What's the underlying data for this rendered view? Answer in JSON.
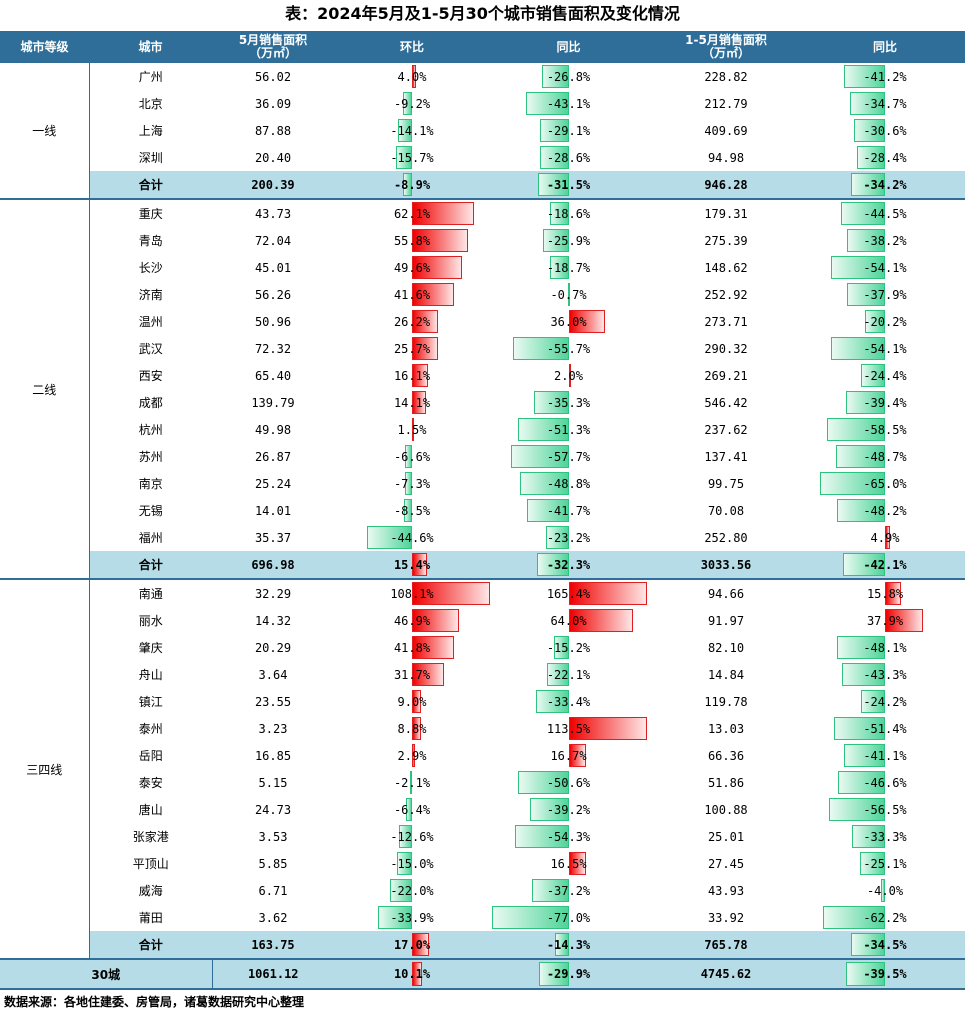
{
  "title": "表：2024年5月及1-5月30个城市销售面积及变化情况",
  "headers": [
    "城市等级",
    "城市",
    "5月销售面积\n（万㎡）",
    "环比",
    "同比",
    "1-5月销售面积\n（万㎡）",
    "同比"
  ],
  "groups": [
    {
      "tier": "一线",
      "rows": [
        [
          "广州",
          "56.02",
          "4.0%",
          "-26.8%",
          "228.82",
          "-41.2%"
        ],
        [
          "北京",
          "36.09",
          "-9.2%",
          "-43.1%",
          "212.79",
          "-34.7%"
        ],
        [
          "上海",
          "87.88",
          "-14.1%",
          "-29.1%",
          "409.69",
          "-30.6%"
        ],
        [
          "深圳",
          "20.40",
          "-15.7%",
          "-28.6%",
          "94.98",
          "-28.4%"
        ]
      ],
      "subtotal": [
        "合计",
        "200.39",
        "-8.9%",
        "-31.5%",
        "946.28",
        "-34.2%"
      ]
    },
    {
      "tier": "二线",
      "rows": [
        [
          "重庆",
          "43.73",
          "62.1%",
          "-18.6%",
          "179.31",
          "-44.5%"
        ],
        [
          "青岛",
          "72.04",
          "55.8%",
          "-25.9%",
          "275.39",
          "-38.2%"
        ],
        [
          "长沙",
          "45.01",
          "49.6%",
          "-18.7%",
          "148.62",
          "-54.1%"
        ],
        [
          "济南",
          "56.26",
          "41.6%",
          "-0.7%",
          "252.92",
          "-37.9%"
        ],
        [
          "温州",
          "50.96",
          "26.2%",
          "36.0%",
          "273.71",
          "-20.2%"
        ],
        [
          "武汉",
          "72.32",
          "25.7%",
          "-55.7%",
          "290.32",
          "-54.1%"
        ],
        [
          "西安",
          "65.40",
          "16.1%",
          "2.0%",
          "269.21",
          "-24.4%"
        ],
        [
          "成都",
          "139.79",
          "14.1%",
          "-35.3%",
          "546.42",
          "-39.4%"
        ],
        [
          "杭州",
          "49.98",
          "1.5%",
          "-51.3%",
          "237.62",
          "-58.5%"
        ],
        [
          "苏州",
          "26.87",
          "-6.6%",
          "-57.7%",
          "137.41",
          "-48.7%"
        ],
        [
          "南京",
          "25.24",
          "-7.3%",
          "-48.8%",
          "99.75",
          "-65.0%"
        ],
        [
          "无锡",
          "14.01",
          "-8.5%",
          "-41.7%",
          "70.08",
          "-48.2%"
        ],
        [
          "福州",
          "35.37",
          "-44.6%",
          "-23.2%",
          "252.80",
          "4.9%"
        ]
      ],
      "subtotal": [
        "合计",
        "696.98",
        "15.4%",
        "-32.3%",
        "3033.56",
        "-42.1%"
      ]
    },
    {
      "tier": "三四线",
      "rows": [
        [
          "南通",
          "32.29",
          "108.1%",
          "165.4%",
          "94.66",
          "15.8%"
        ],
        [
          "丽水",
          "14.32",
          "46.9%",
          "64.0%",
          "91.97",
          "37.9%"
        ],
        [
          "肇庆",
          "20.29",
          "41.8%",
          "-15.2%",
          "82.10",
          "-48.1%"
        ],
        [
          "舟山",
          "3.64",
          "31.7%",
          "-22.1%",
          "14.84",
          "-43.3%"
        ],
        [
          "镇江",
          "23.55",
          "9.0%",
          "-33.4%",
          "119.78",
          "-24.2%"
        ],
        [
          "泰州",
          "3.23",
          "8.8%",
          "113.5%",
          "13.03",
          "-51.4%"
        ],
        [
          "岳阳",
          "16.85",
          "2.9%",
          "16.7%",
          "66.36",
          "-41.1%"
        ],
        [
          "泰安",
          "5.15",
          "-2.1%",
          "-50.6%",
          "51.86",
          "-46.6%"
        ],
        [
          "唐山",
          "24.73",
          "-6.4%",
          "-39.2%",
          "100.88",
          "-56.5%"
        ],
        [
          "张家港",
          "3.53",
          "-12.6%",
          "-54.3%",
          "25.01",
          "-33.3%"
        ],
        [
          "平顶山",
          "5.85",
          "-15.0%",
          "16.5%",
          "27.45",
          "-25.1%"
        ],
        [
          "威海",
          "6.71",
          "-22.0%",
          "-37.2%",
          "43.93",
          "-4.0%"
        ],
        [
          "莆田",
          "3.62",
          "-33.9%",
          "-77.0%",
          "33.92",
          "-62.2%"
        ]
      ],
      "subtotal": [
        "合计",
        "163.75",
        "17.0%",
        "-14.3%",
        "765.78",
        "-34.5%"
      ]
    }
  ],
  "total": [
    "30城",
    "1061.12",
    "10.1%",
    "-29.9%",
    "4745.62",
    "-39.5%"
  ],
  "source": "数据来源：各地住建委、房管局，诸葛数据研究中心整理"
}
